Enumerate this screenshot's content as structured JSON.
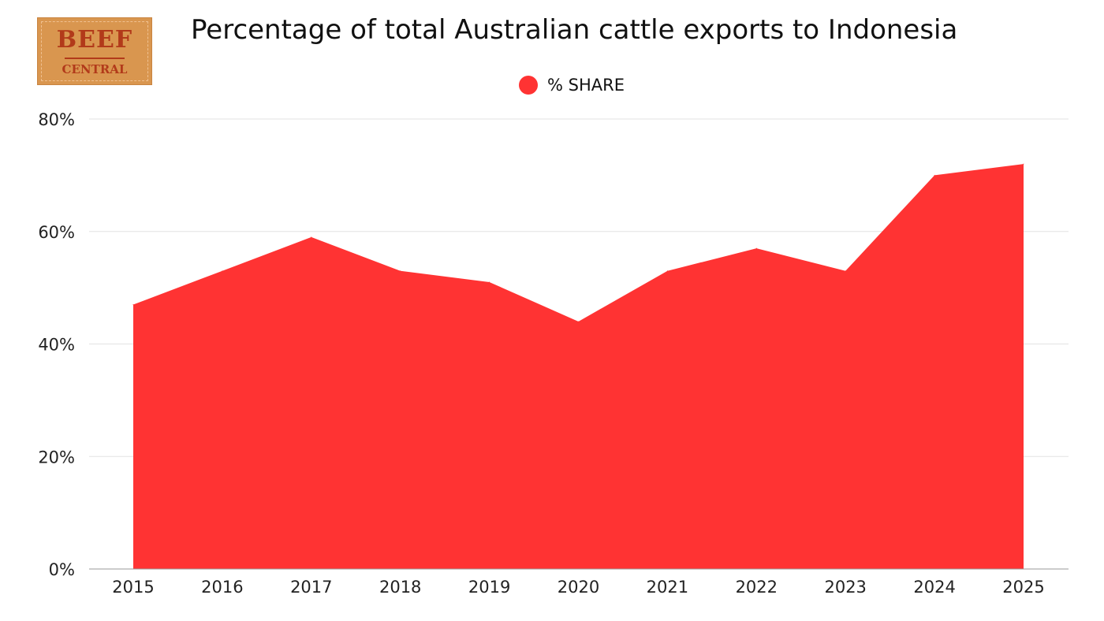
{
  "logo": {
    "line1": "BEEF",
    "line2": "CENTRAL"
  },
  "chart_data": {
    "type": "area",
    "title": "Percentage of total Australian cattle exports to Indonesia",
    "categories": [
      "2015",
      "2016",
      "2017",
      "2018",
      "2019",
      "2020",
      "2021",
      "2022",
      "2023",
      "2024",
      "2025"
    ],
    "series": [
      {
        "name": "% SHARE",
        "values": [
          47,
          53,
          59,
          53,
          51,
          44,
          53,
          57,
          53,
          70,
          72
        ],
        "color": "#ff3333"
      }
    ],
    "ylim": [
      0,
      80
    ],
    "yticks": [
      0,
      20,
      40,
      60,
      80
    ],
    "ytick_labels": [
      "0%",
      "20%",
      "40%",
      "60%",
      "80%"
    ],
    "grid": true,
    "legend": "top-center"
  }
}
